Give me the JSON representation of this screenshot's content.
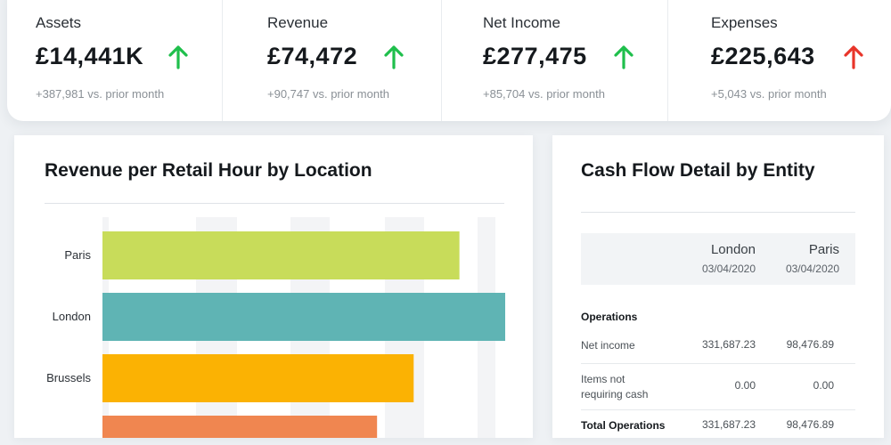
{
  "kpis": [
    {
      "label": "Assets",
      "value": "£14,441K",
      "trend": "up",
      "delta": "+387,981 vs. prior month"
    },
    {
      "label": "Revenue",
      "value": "£74,472",
      "trend": "up",
      "delta": "+90,747 vs. prior month"
    },
    {
      "label": "Net Income",
      "value": "£277,475",
      "trend": "up",
      "delta": "+85,704 vs. prior month"
    },
    {
      "label": "Expenses",
      "value": "£225,643",
      "trend": "up-bad",
      "delta": "+5,043 vs. prior month"
    }
  ],
  "colors": {
    "up_good": "#1fbf4c",
    "up_bad": "#e8352a"
  },
  "revenue_chart": {
    "title": "Revenue per Retail Hour by Location",
    "chart_data": {
      "type": "bar",
      "orientation": "horizontal",
      "categories": [
        "Paris",
        "London",
        "Brussels",
        ""
      ],
      "values": [
        78,
        88,
        68,
        60
      ],
      "colors": [
        "#c8dc5a",
        "#5fb4b4",
        "#fbb203",
        "#f08650"
      ],
      "xlim": [
        0,
        88
      ],
      "grid": true
    }
  },
  "cash_flow": {
    "title": "Cash Flow Detail by Entity",
    "columns": [
      {
        "name": "London",
        "date": "03/04/2020"
      },
      {
        "name": "Paris",
        "date": "03/04/2020"
      }
    ],
    "section": "Operations",
    "rows": [
      {
        "label": "Net income",
        "london": "331,687.23",
        "paris": "98,476.89"
      },
      {
        "label": "Items not requiring cash",
        "london": "0.00",
        "paris": "0.00"
      },
      {
        "label": "Total Operations",
        "london": "331,687.23",
        "paris": "98,476.89"
      }
    ]
  }
}
